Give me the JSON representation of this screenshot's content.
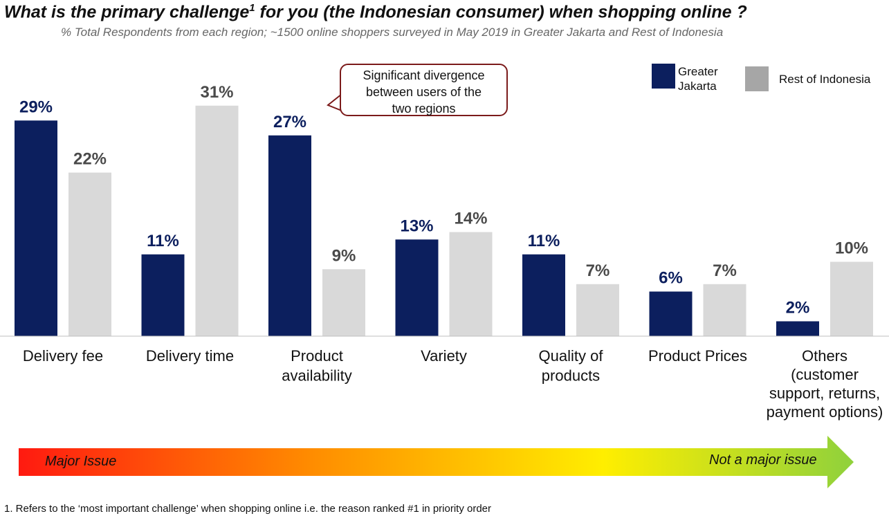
{
  "title_main": "What is the primary challenge",
  "title_sup": "1",
  "title_rest": " for you (the Indonesian consumer) when shopping online ?",
  "subtitle": "% Total Respondents from each region; ~1500 online shoppers surveyed in May 2019 in Greater Jakarta and Rest of Indonesia",
  "callout": [
    "Significant divergence",
    "between users of the",
    "two regions"
  ],
  "scale": {
    "left_label": "Major Issue",
    "right_label": "Not a major issue"
  },
  "footnote": "1. Refers to the ‘most important challenge’ when shopping online i.e. the reason ranked #1 in priority order",
  "colors": {
    "greater_jakarta": "#0c1f5e",
    "rest_of_indonesia": "#d9d9d9",
    "legend_rest": "#a6a6a6",
    "label_dark": "#0c1f5e",
    "label_grey": "#4a4a4a",
    "callout_border": "#7b1a1a"
  },
  "chart_data": {
    "type": "bar",
    "categories": [
      [
        "Delivery fee"
      ],
      [
        "Delivery time"
      ],
      [
        "Product",
        "availability"
      ],
      [
        "Variety"
      ],
      [
        "Quality of",
        "products"
      ],
      [
        "Product Prices"
      ],
      [
        "Others",
        "(customer",
        "support, returns,",
        "payment options)"
      ]
    ],
    "series": [
      {
        "name": "Greater Jakarta",
        "legend_lines": [
          "Greater",
          "Jakarta"
        ],
        "values": [
          29,
          11,
          27,
          13,
          11,
          6,
          2
        ]
      },
      {
        "name": "Rest of Indonesia",
        "legend_lines": [
          "Rest of Indonesia"
        ],
        "values": [
          22,
          31,
          9,
          14,
          7,
          7,
          10
        ]
      }
    ],
    "value_suffix": "%",
    "ylim": [
      0,
      33
    ],
    "legend": "top-right",
    "grid": false
  }
}
